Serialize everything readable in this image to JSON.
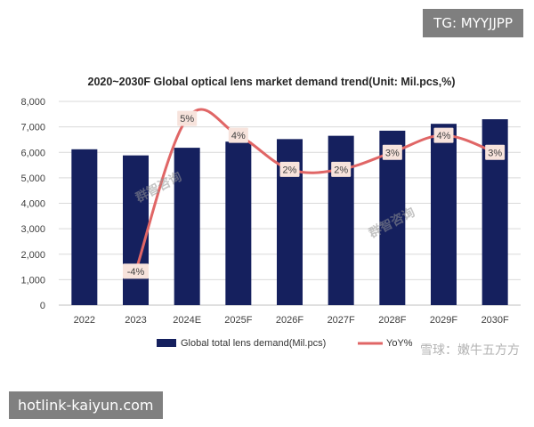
{
  "overlays": {
    "top_right_badge": "TG: MYYJJPP",
    "bottom_left_badge": "hotlink-kaiyun.com",
    "bottom_right_watermark": "雪球：嫩牛五方方"
  },
  "watermarks": [
    "群智咨询",
    "群智咨询"
  ],
  "colors": {
    "bar": "#15205e",
    "line": "#e06666",
    "label_bg": "#f7e3dc",
    "grid": "#d9d9d9"
  },
  "chart_data": {
    "type": "bar",
    "title": "2020~2030F Global optical lens market demand trend(Unit: Mil.pcs,%)",
    "categories": [
      "2022",
      "2023",
      "2024E",
      "2025F",
      "2026F",
      "2027F",
      "2028F",
      "2029F",
      "2030F"
    ],
    "ylim": [
      0,
      8000
    ],
    "yticks": [
      "0",
      "1,000",
      "2,000",
      "3,000",
      "4,000",
      "5,000",
      "6,000",
      "7,000",
      "8,000"
    ],
    "grid": true,
    "legend_position": "bottom",
    "series": [
      {
        "name": "Global total lens demand(Mil.pcs)",
        "type": "bar",
        "values": [
          6120,
          5880,
          6180,
          6420,
          6520,
          6650,
          6850,
          7120,
          7300
        ]
      },
      {
        "name": "YoY%",
        "type": "line",
        "axis": "secondary",
        "ylim": [
          -6,
          6
        ],
        "values": [
          null,
          -4,
          5,
          4,
          2,
          2,
          3,
          4,
          3
        ],
        "labels": [
          "",
          "-4%",
          "5%",
          "4%",
          "2%",
          "2%",
          "3%",
          "4%",
          "3%"
        ]
      }
    ]
  }
}
